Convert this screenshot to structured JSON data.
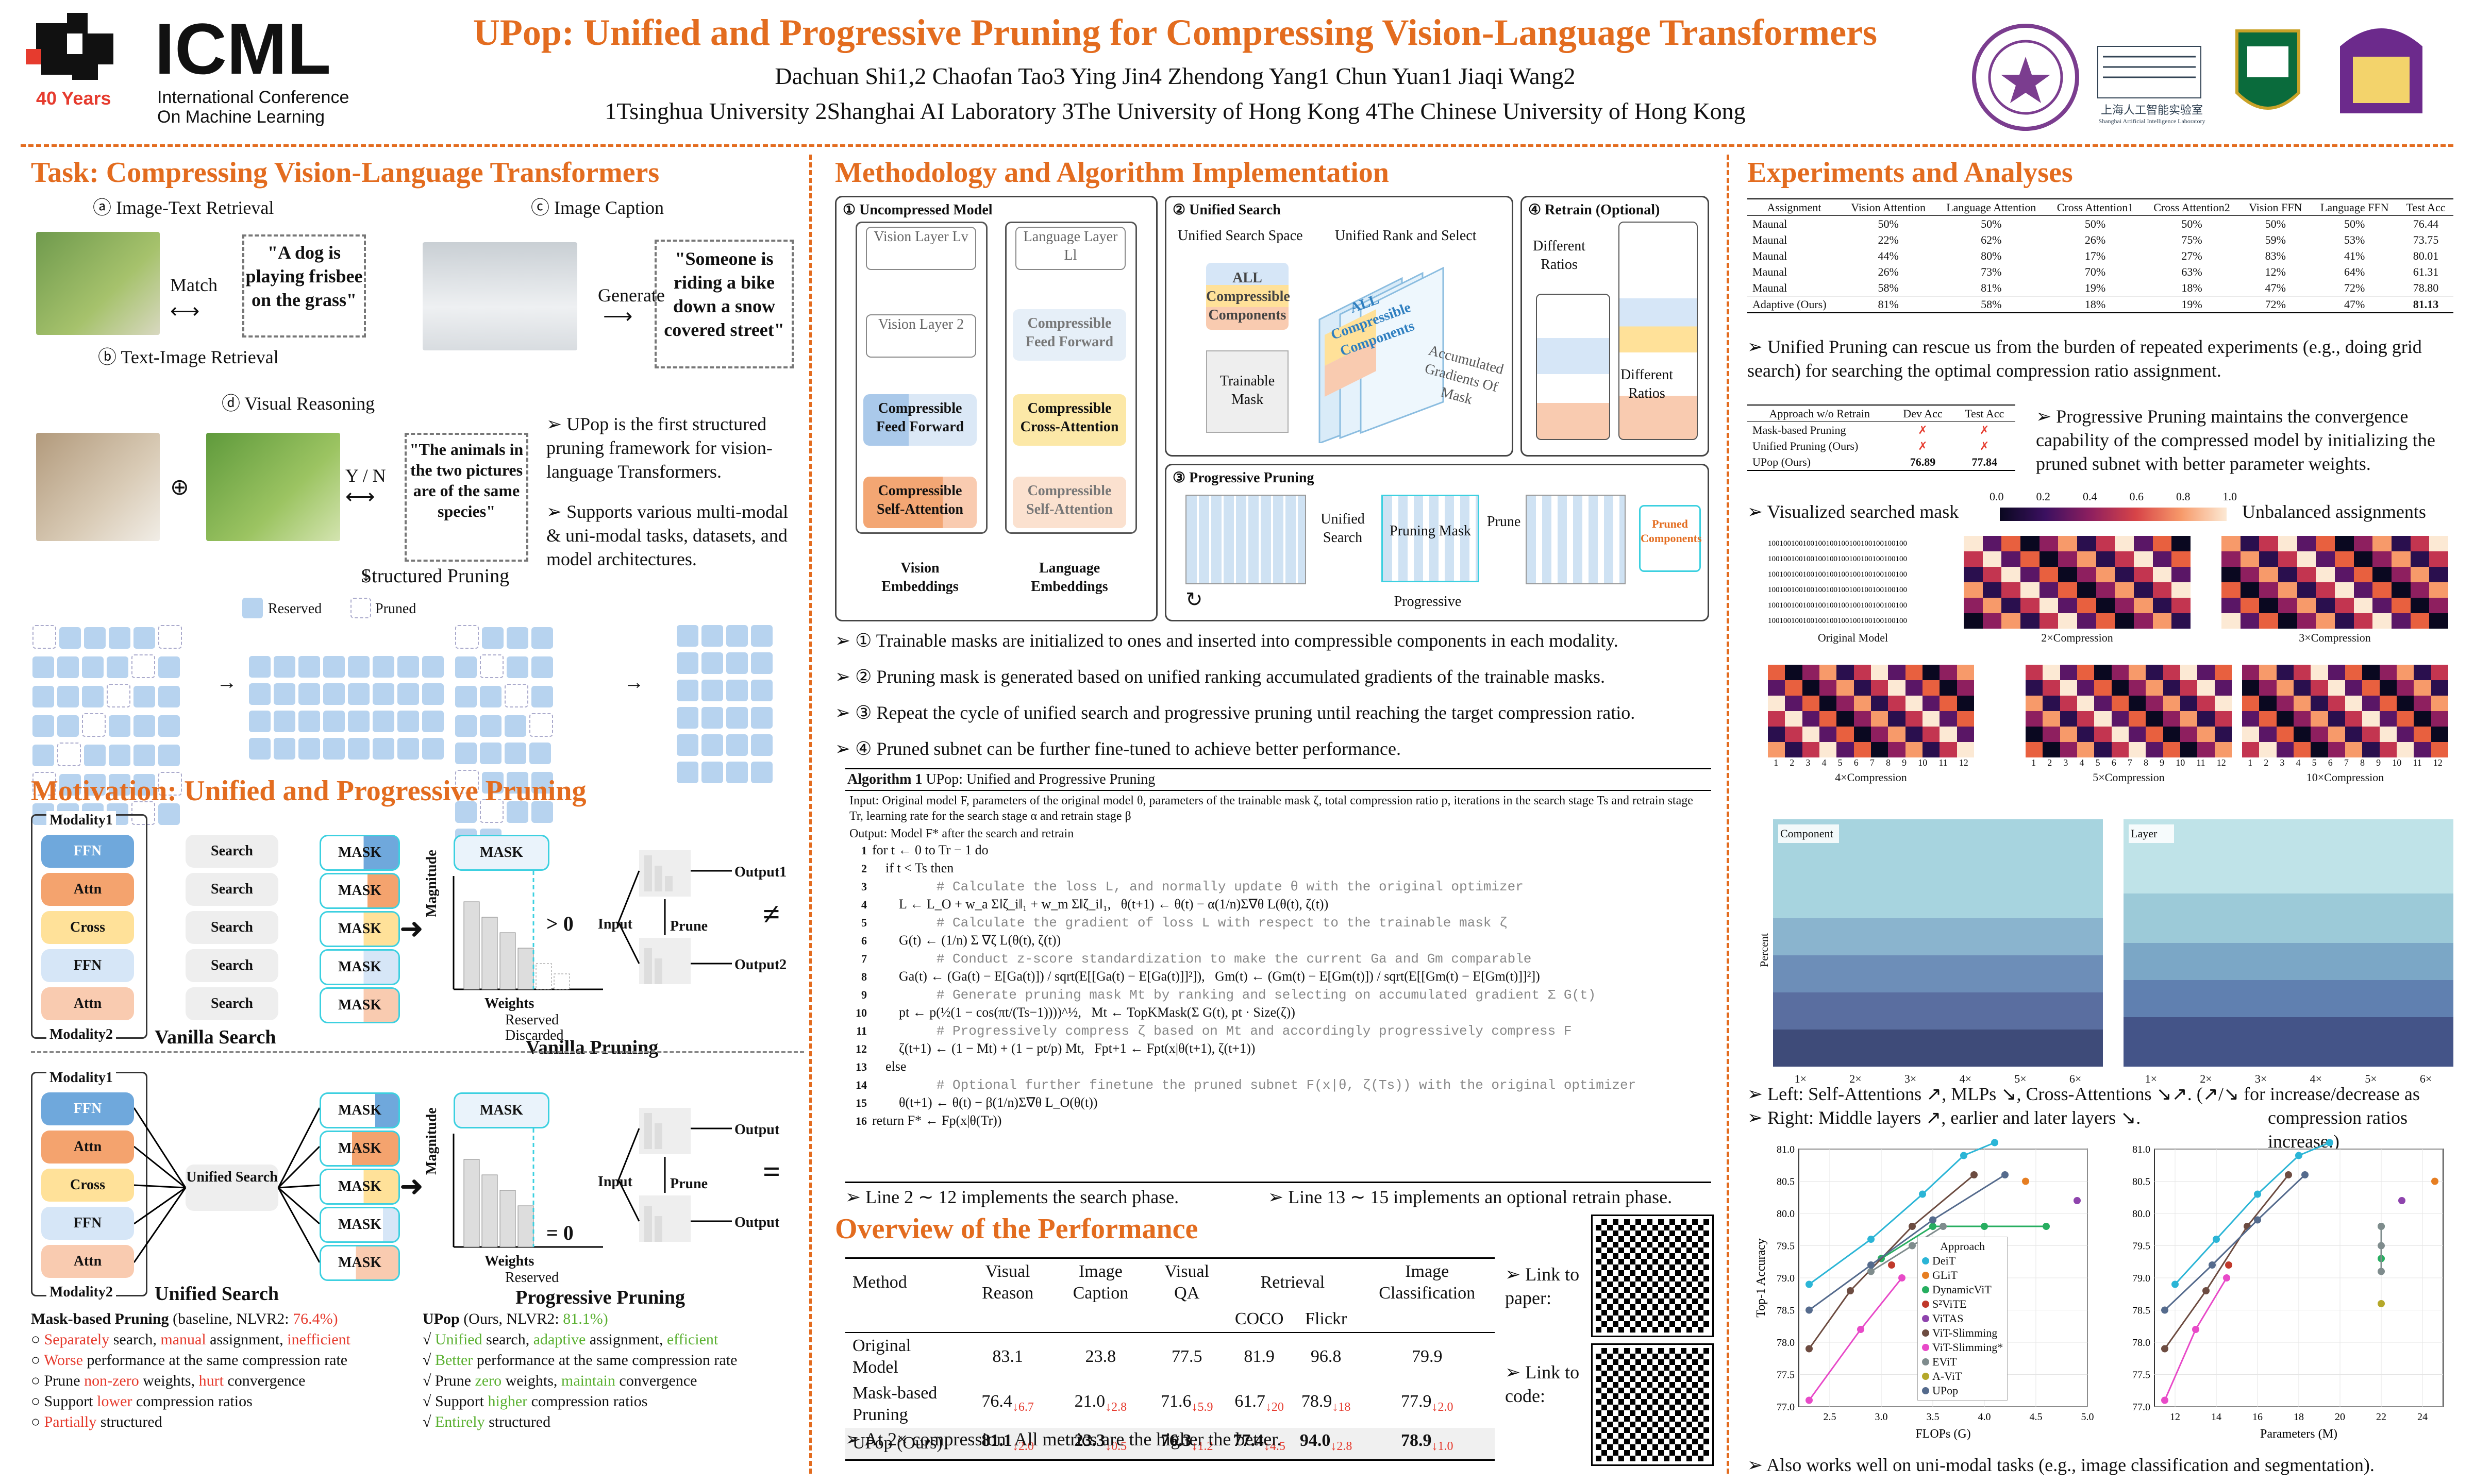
{
  "header": {
    "logo_text": "ICML",
    "logo_years": "40 Years",
    "logo_sub1": "International Conference",
    "logo_sub2": "On Machine Learning",
    "title": "UPop: Unified and Progressive Pruning for Compressing Vision-Language Transformers",
    "authors": "Dachuan Shi1,2   Chaofan Tao3   Ying Jin4   Zhendong Yang1   Chun Yuan1   Jiaqi Wang2",
    "affiliations": "1Tsinghua University  2Shanghai AI Laboratory  3The University of Hong Kong  4The Chinese University of Hong Kong",
    "lab_name": "上海人工智能实验室",
    "lab_name_en": "Shanghai Artificial Intelligence Laboratory"
  },
  "task": {
    "title": "Task: Compressing Vision-Language Transformers",
    "a_label": "ⓐ Image-Text Retrieval",
    "b_label": "ⓑ Text-Image Retrieval",
    "c_label": "ⓒ Image Caption",
    "d_label": "ⓓ Visual Reasoning",
    "match": "Match",
    "generate": "Generate",
    "quote_a": "\"A dog is playing frisbee on the grass\"",
    "quote_c": "\"Someone is riding a bike down a snow covered street\"",
    "quote_d": "\"The animals in the two pictures are of the same species\"",
    "yn": "Y / N",
    "structured_pruning": "Structured  Pruning",
    "reserved": "Reserved",
    "pruned": "Pruned",
    "bullet1": "➢ UPop is the first structured pruning framework for vision-language Transformers.",
    "bullet2": "➢ Supports various multi-modal & uni-modal tasks, datasets, and model architectures."
  },
  "motivation": {
    "title": "Motivation: Unified and Progressive Pruning",
    "modality1": "Modality1",
    "modality2": "Modality2",
    "ffn": "FFN",
    "attn": "Attn",
    "cross": "Cross",
    "search": "Search",
    "mask": "MASK",
    "vanilla_search": "Vanilla Search",
    "vanilla_pruning": "Vanilla Pruning",
    "unified_search": "Unified Search",
    "progressive_pruning": "Progressive Pruning",
    "magnitude": "Magnitude",
    "weights": "Weights",
    "gt0": "> 0",
    "eq0": "= 0",
    "reserved": "Reserved",
    "discarded": "Discarded",
    "input": "Input",
    "prune": "Prune",
    "output1": "Output1",
    "output2": "Output2",
    "output": "Output",
    "neq": "≠",
    "eq": "=",
    "baseline_title": "Mask-based Pruning",
    "baseline_sub": "(baseline, NLVR2: ",
    "baseline_val": "76.4%)",
    "ours_title": "UPop",
    "ours_sub": "(Ours, NLVR2: ",
    "ours_val": "81.1%)",
    "baseline_items": [
      [
        "Separately",
        " search, ",
        "manual",
        " assignment, ",
        "inefficient"
      ],
      [
        "Worse",
        " performance at the same compression rate",
        "",
        "",
        ""
      ],
      [
        "Prune ",
        "non-zero",
        " weights, ",
        "hurt",
        " convergence"
      ],
      [
        "Support ",
        "lower",
        " compression ratios",
        "",
        ""
      ],
      [
        "Partially",
        " structured",
        "",
        "",
        ""
      ]
    ],
    "ours_items": [
      [
        "Unified",
        " search, ",
        "adaptive",
        " assignment, ",
        "efficient"
      ],
      [
        "Better",
        " performance at the same compression rate",
        "",
        "",
        ""
      ],
      [
        "Prune ",
        "zero",
        " weights, ",
        "maintain",
        " convergence"
      ],
      [
        "Support ",
        "higher",
        " compression ratios",
        "",
        ""
      ],
      [
        "Entirely",
        " structured",
        "",
        "",
        ""
      ]
    ]
  },
  "method": {
    "title": "Methodology and Algorithm Implementation",
    "panel1": "① Uncompressed Model",
    "panel2": "② Unified Search",
    "panel3": "③ Progressive Pruning",
    "panel4": "④ Retrain (Optional)",
    "vision_layer_lv": "Vision Layer Lv",
    "vision_layer_2": "Vision Layer 2",
    "language_layer_ll": "Language Layer Ll",
    "compressible_ffn": "Compressible Feed Forward",
    "compressible_cross": "Compressible Cross-Attention",
    "compressible_self": "Compressible Self-Attention",
    "vision_emb": "Vision Embeddings",
    "language_emb": "Language Embeddings",
    "unified_search_space": "Unified Search Space",
    "unified_rank": "Unified Rank and Select",
    "all_compressible": "ALL Compressible Components",
    "trainable_mask": "Trainable Mask",
    "accumulated": "Accumulated Gradients Of Mask",
    "different_ratios": "Different Ratios",
    "unified_search": "Unified Search",
    "pruning_mask": "Pruning Mask",
    "prune": "Prune",
    "progressive": "Progressive",
    "pruned_components": "Pruned Components",
    "bullets": [
      "➢ ① Trainable masks are initialized to ones and inserted into compressible components in each modality.",
      "➢ ② Pruning mask is generated based on unified ranking accumulated gradients of the trainable masks.",
      "➢ ③ Repeat the cycle of unified search and progressive pruning until reaching the target compression ratio.",
      "➢ ④ Pruned subnet can be further fine-tuned to achieve better performance."
    ],
    "algo_title": "Algorithm 1",
    "algo_name": "UPop: Unified and Progressive Pruning",
    "algo_input": "Input: Original model F, parameters of the original model θ, parameters of the trainable mask ζ, total compression ratio p, iterations in the search stage Ts and retrain stage Tr, learning rate for the search stage α and retrain stage β",
    "algo_output": "Output: Model F* after the search and retrain",
    "algo_lines": [
      [
        "1",
        "for t ← 0 to Tr − 1 do"
      ],
      [
        "2",
        "    if t < Ts then"
      ],
      [
        "3",
        "        # Calculate the loss L, and normally update θ with the original optimizer"
      ],
      [
        "4",
        "        L ← L_O + w_a Σ‖ζ_i‖₁ + w_m Σ‖ζ_i‖₁,   θ(t+1) ← θ(t) − α(1/n)Σ∇θ L(θ(t), ζ(t))"
      ],
      [
        "5",
        "        # Calculate the gradient of loss L with respect to the trainable mask ζ"
      ],
      [
        "6",
        "        G(t) ← (1/n) Σ ∇ζ L(θ(t), ζ(t))"
      ],
      [
        "7",
        "        # Conduct z-score standardization to make the current Ga and Gm comparable"
      ],
      [
        "8",
        "        Ga(t) ← (Ga(t) − E[Ga(t)]) / sqrt(E[[Ga(t) − E[Ga(t)]]²]),   Gm(t) ← (Gm(t) − E[Gm(t)]) / sqrt(E[[Gm(t) − E[Gm(t)]]²])"
      ],
      [
        "9",
        "        # Generate pruning mask Mt by ranking and selecting on accumulated gradient Σ G(t)"
      ],
      [
        "10",
        "        pt ← p(½(1 − cos(πt/(Ts−1))))^½,   Mt ← TopKMask(Σ G(t), pt · Size(ζ))"
      ],
      [
        "11",
        "        # Progressively compress ζ based on Mt and accordingly progressively compress F"
      ],
      [
        "12",
        "        ζ(t+1) ← (1 − Mt) + (1 − pt/p) Mt,   Fpt+1 ← Fpt(x|θ(t+1), ζ(t+1))"
      ],
      [
        "13",
        "    else"
      ],
      [
        "14",
        "        # Optional further finetune the pruned subnet F(x|θ, ζ(Ts)) with the original optimizer"
      ],
      [
        "15",
        "        θ(t+1) ← θ(t) − β(1/n)Σ∇θ L_O(θ(t))"
      ],
      [
        "16",
        "return F* ← Fp(x|θ(Tr))"
      ]
    ],
    "line_note1": "➢ Line 2 ∼ 12 implements the search phase.",
    "line_note2": "➢ Line 13 ∼ 15 implements an optional retrain phase."
  },
  "performance": {
    "title": "Overview of the Performance",
    "headers": [
      "Method",
      "Visual Reason",
      "Image Caption",
      "Visual QA",
      "Retrieval",
      "Image Classification"
    ],
    "retrieval_sub": [
      "COCO",
      "Flickr"
    ],
    "rows": [
      {
        "method": "Original Model",
        "vals": [
          "83.1",
          "23.8",
          "77.5",
          "81.9",
          "96.8",
          "79.9"
        ],
        "deltas": [
          "",
          "",
          "",
          "",
          "",
          ""
        ]
      },
      {
        "method": "Mask-based Pruning",
        "vals": [
          "76.4",
          "21.0",
          "71.6",
          "61.7",
          "78.9",
          "77.9"
        ],
        "deltas": [
          "↓6.7",
          "↓2.8",
          "↓5.9",
          "↓20",
          "↓18",
          "↓2.0"
        ]
      },
      {
        "method": "UPop (Ours)",
        "vals": [
          "81.1",
          "23.3",
          "76.3",
          "77.4",
          "94.0",
          "78.9"
        ],
        "deltas": [
          "↓2.0",
          "↓0.5",
          "↓1.2",
          "↓4.5",
          "↓2.8",
          "↓1.0"
        ]
      }
    ],
    "note": "➢ At 2× compression. All metrics are the higher the better.",
    "link_paper": "➢ Link to paper:",
    "link_code": "➢ Link to code:"
  },
  "experiments": {
    "title": "Experiments and Analyses",
    "assign_headers": [
      "Assignment",
      "Vision Attention",
      "Language Attention",
      "Cross Attention1",
      "Cross Attention2",
      "Vision FFN",
      "Language FFN",
      "Test Acc"
    ],
    "assign_rows": [
      [
        "Maunal",
        "50%",
        "50%",
        "50%",
        "50%",
        "50%",
        "50%",
        "76.44"
      ],
      [
        "Maunal",
        "22%",
        "62%",
        "26%",
        "75%",
        "59%",
        "53%",
        "73.75"
      ],
      [
        "Maunal",
        "44%",
        "80%",
        "17%",
        "27%",
        "83%",
        "41%",
        "80.01"
      ],
      [
        "Maunal",
        "26%",
        "73%",
        "70%",
        "63%",
        "12%",
        "64%",
        "61.31"
      ],
      [
        "Maunal",
        "58%",
        "81%",
        "19%",
        "18%",
        "47%",
        "72%",
        "78.80"
      ]
    ],
    "assign_ours": [
      "Adaptive (Ours)",
      "81%",
      "58%",
      "18%",
      "19%",
      "72%",
      "47%",
      "81.13"
    ],
    "bullet_unified": "➢ Unified Pruning can rescue us from the burden of repeated experiments (e.g., doing grid search) for searching the optimal compression ratio assignment.",
    "retrain_headers": [
      "Approach w/o Retrain",
      "Dev Acc",
      "Test Acc"
    ],
    "retrain_rows": [
      [
        "Mask-based Pruning",
        "✗",
        "✗"
      ],
      [
        "Unified Pruning (Ours)",
        "✗",
        "✗"
      ],
      [
        "UPop (Ours)",
        "76.89",
        "77.84"
      ]
    ],
    "bullet_progressive": "➢ Progressive Pruning maintains the convergence capability of the compressed model by initializing the pruned subnet with better parameter weights.",
    "viz_mask": "➢ Visualized searched mask",
    "unbalanced": "Unbalanced assignments",
    "colorbar": [
      "0.0",
      "0.2",
      "0.4",
      "0.6",
      "0.8",
      "1.0"
    ],
    "heat_labels": [
      "Original Model",
      "2×Compression",
      "3×Compression",
      "4×Compression",
      "5×Compression",
      "10×Compression"
    ],
    "ones_row": "100100100100100100100100100100100100",
    "heat_axis": [
      "1",
      "2",
      "3",
      "4",
      "5",
      "6",
      "7",
      "8",
      "9",
      "10",
      "11",
      "12"
    ],
    "legend_component": "Component",
    "legend_layer": "Layer",
    "percent_label": "Percent",
    "bar_x": [
      "1×",
      "2×",
      "3×",
      "4×",
      "5×",
      "6×"
    ],
    "bullet_left": "➢ Left: Self-Attentions ↗, MLPs ↘, Cross-Attentions ↘↗. (↗/↘ for increase/decrease as",
    "bullet_left2": "compression ratios increase.)",
    "bullet_right": "➢ Right: Middle layers ↗, earlier and later layers ↘.",
    "bullet_unimodal": "➢ Also works well on uni-modal tasks (e.g., image classification and segmentation).",
    "approach_legend": [
      "Approach",
      "DeiT",
      "GLiT",
      "DynamicViT",
      "S²ViTE",
      "ViTAS",
      "ViT-Slimming",
      "ViT-Slimming*",
      "EViT",
      "A-ViT",
      "UPop"
    ]
  },
  "chart_data": [
    {
      "type": "scatter",
      "title": "",
      "xlabel": "FLOPs (G)",
      "ylabel": "Top-1 Accuracy",
      "xlim": [
        2.2,
        5.0
      ],
      "ylim": [
        77.0,
        81.0
      ],
      "xticks": [
        "2.5",
        "3.0",
        "3.5",
        "4.0",
        "4.5",
        "5.0"
      ],
      "yticks": [
        "77.0",
        "77.5",
        "78.0",
        "78.5",
        "79.0",
        "79.5",
        "80.0",
        "80.5",
        "81.0"
      ],
      "series": [
        {
          "name": "DeiT",
          "color": "#2bb5d6",
          "points": [
            [
              2.3,
              78.9
            ],
            [
              2.9,
              79.6
            ],
            [
              3.4,
              80.3
            ],
            [
              3.8,
              80.9
            ],
            [
              4.1,
              81.1
            ]
          ]
        },
        {
          "name": "GLiT",
          "color": "#e67e22",
          "points": [
            [
              4.4,
              80.5
            ]
          ]
        },
        {
          "name": "DynamicViT",
          "color": "#27ae60",
          "points": [
            [
              3.0,
              79.3
            ],
            [
              3.5,
              79.8
            ],
            [
              4.0,
              79.8
            ],
            [
              4.6,
              79.8
            ]
          ]
        },
        {
          "name": "S²ViTE",
          "color": "#c0392b",
          "points": [
            [
              3.1,
              79.2
            ]
          ]
        },
        {
          "name": "ViTAS",
          "color": "#8e44ad",
          "points": [
            [
              4.9,
              80.2
            ]
          ]
        },
        {
          "name": "ViT-Slimming",
          "color": "#6d4c41",
          "points": [
            [
              2.3,
              77.9
            ],
            [
              2.7,
              78.8
            ],
            [
              3.3,
              79.8
            ],
            [
              3.9,
              80.6
            ]
          ]
        },
        {
          "name": "ViT-Slimming*",
          "color": "#e84ac8",
          "points": [
            [
              2.3,
              77.1
            ],
            [
              2.8,
              78.2
            ],
            [
              3.2,
              79.0
            ]
          ]
        },
        {
          "name": "EViT",
          "color": "#7f8c8d",
          "points": [
            [
              2.9,
              79.1
            ],
            [
              3.3,
              79.5
            ],
            [
              3.6,
              79.8
            ]
          ]
        },
        {
          "name": "A-ViT",
          "color": "#b5a82a",
          "points": [
            [
              3.6,
              78.6
            ]
          ]
        },
        {
          "name": "UPop",
          "color": "#556b8d",
          "points": [
            [
              2.3,
              78.5
            ],
            [
              2.9,
              79.2
            ],
            [
              3.5,
              79.9
            ],
            [
              4.2,
              80.6
            ]
          ]
        }
      ]
    },
    {
      "type": "scatter",
      "title": "",
      "xlabel": "Parameters (M)",
      "ylabel": "",
      "xlim": [
        11,
        25
      ],
      "ylim": [
        77.0,
        81.0
      ],
      "xticks": [
        "12",
        "14",
        "16",
        "18",
        "20",
        "22",
        "24"
      ],
      "yticks": [
        "77.0",
        "77.5",
        "78.0",
        "78.5",
        "79.0",
        "79.5",
        "80.0",
        "80.5",
        "81.0"
      ],
      "series": [
        {
          "name": "DeiT",
          "color": "#2bb5d6",
          "points": [
            [
              12,
              78.9
            ],
            [
              14,
              79.6
            ],
            [
              16,
              80.3
            ],
            [
              18,
              80.9
            ],
            [
              19.5,
              81.1
            ]
          ]
        },
        {
          "name": "GLiT",
          "color": "#e67e22",
          "points": [
            [
              24.6,
              80.5
            ]
          ]
        },
        {
          "name": "DynamicViT",
          "color": "#27ae60",
          "points": [
            [
              22,
              79.3
            ],
            [
              22,
              79.8
            ]
          ]
        },
        {
          "name": "S²ViTE",
          "color": "#c0392b",
          "points": [
            [
              14.6,
              79.2
            ]
          ]
        },
        {
          "name": "ViTAS",
          "color": "#8e44ad",
          "points": [
            [
              23,
              80.2
            ]
          ]
        },
        {
          "name": "ViT-Slimming",
          "color": "#6d4c41",
          "points": [
            [
              11.5,
              77.9
            ],
            [
              13.5,
              78.8
            ],
            [
              15.5,
              79.8
            ],
            [
              17.5,
              80.6
            ]
          ]
        },
        {
          "name": "ViT-Slimming*",
          "color": "#e84ac8",
          "points": [
            [
              11.5,
              77.1
            ],
            [
              13,
              78.2
            ],
            [
              14.5,
              79.0
            ]
          ]
        },
        {
          "name": "EViT",
          "color": "#7f8c8d",
          "points": [
            [
              22,
              79.1
            ],
            [
              22,
              79.5
            ],
            [
              22,
              79.8
            ]
          ]
        },
        {
          "name": "A-ViT",
          "color": "#b5a82a",
          "points": [
            [
              22,
              78.6
            ]
          ]
        },
        {
          "name": "UPop",
          "color": "#556b8d",
          "points": [
            [
              11.5,
              78.5
            ],
            [
              13.8,
              79.2
            ],
            [
              16,
              79.9
            ],
            [
              18.3,
              80.6
            ]
          ]
        }
      ]
    }
  ]
}
